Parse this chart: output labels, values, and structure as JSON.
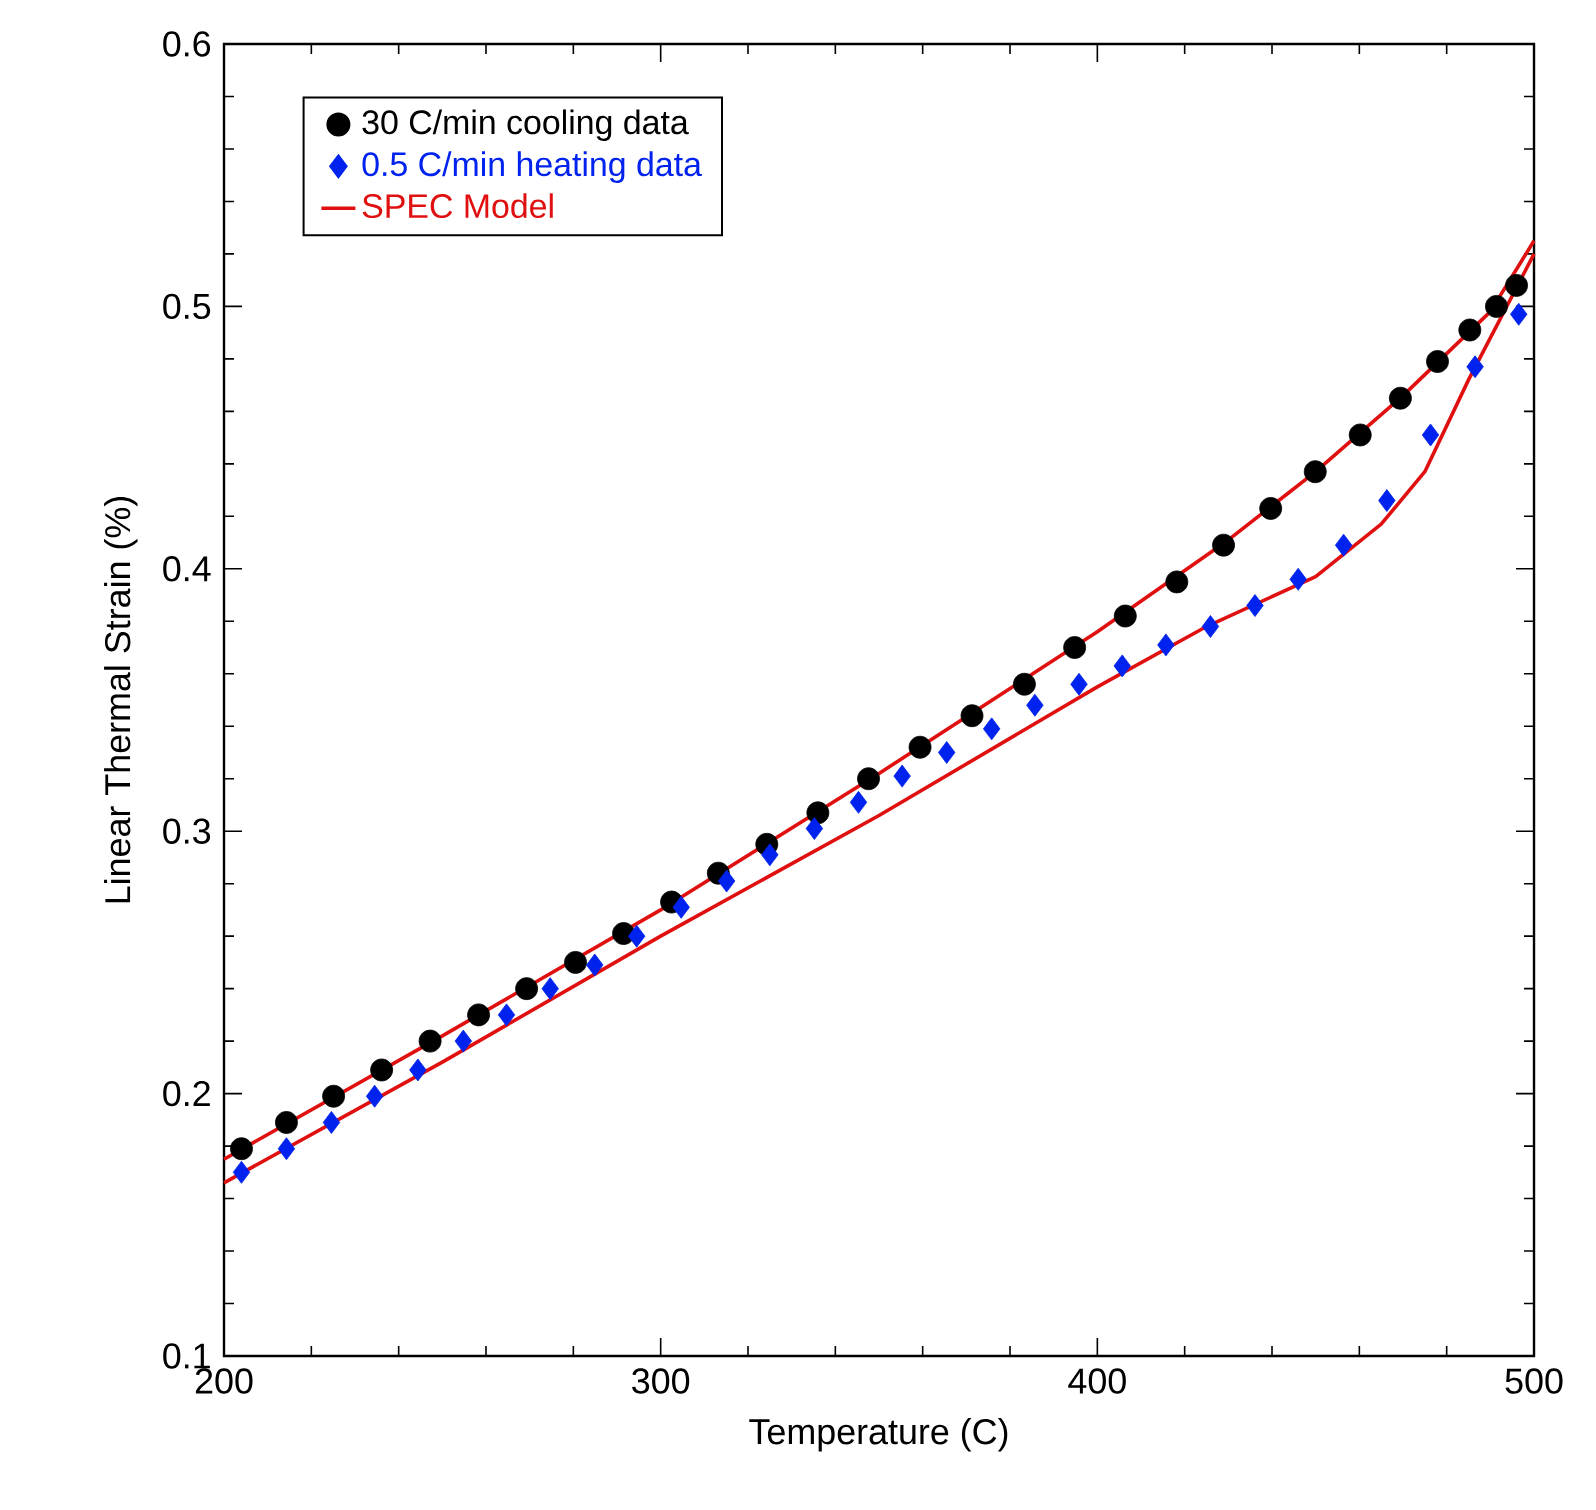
{
  "chart_data": {
    "type": "scatter",
    "xlabel": "Temperature (C)",
    "ylabel": "Linear Thermal Strain (%)",
    "xlim": [
      200,
      500
    ],
    "ylim": [
      0.1,
      0.6
    ],
    "xticks": [
      200,
      300,
      400,
      500
    ],
    "yticks": [
      0.1,
      0.2,
      0.3,
      0.4,
      0.5,
      0.6
    ],
    "grid": false,
    "legend": "top left",
    "series": [
      {
        "name": "30 C/min cooling data",
        "color": "#000000",
        "marker": "circle",
        "x": [
          204.0,
          214.3,
          225.1,
          236.1,
          247.2,
          258.3,
          269.3,
          280.5,
          291.5,
          302.5,
          313.2,
          324.3,
          336.0,
          347.6,
          359.4,
          371.3,
          383.3,
          394.8,
          406.4,
          418.2,
          428.9,
          439.7,
          449.9,
          460.2,
          469.4,
          477.9,
          485.3,
          491.4,
          496.0
        ],
        "values": [
          0.179,
          0.189,
          0.199,
          0.209,
          0.22,
          0.23,
          0.24,
          0.25,
          0.261,
          0.273,
          0.284,
          0.295,
          0.307,
          0.32,
          0.332,
          0.344,
          0.356,
          0.37,
          0.382,
          0.395,
          0.409,
          0.423,
          0.437,
          0.451,
          0.465,
          0.479,
          0.491,
          0.5,
          0.508
        ]
      },
      {
        "name": "0.5 C/min heating data",
        "color": "#0022ee",
        "marker": "diamond",
        "x": [
          204.0,
          214.3,
          224.6,
          234.5,
          244.4,
          254.8,
          264.7,
          274.7,
          284.9,
          294.5,
          304.7,
          315.1,
          325.0,
          335.2,
          345.3,
          355.3,
          365.5,
          375.8,
          385.7,
          395.8,
          405.7,
          415.7,
          425.9,
          436.1,
          446.0,
          456.4,
          466.3,
          476.3,
          486.5,
          496.5
        ],
        "values": [
          0.17,
          0.179,
          0.189,
          0.199,
          0.209,
          0.22,
          0.23,
          0.24,
          0.249,
          0.26,
          0.271,
          0.281,
          0.291,
          0.301,
          0.311,
          0.321,
          0.33,
          0.339,
          0.348,
          0.356,
          0.363,
          0.371,
          0.378,
          0.386,
          0.396,
          0.409,
          0.426,
          0.451,
          0.477,
          0.497
        ]
      },
      {
        "name": "SPEC Model",
        "color": "#e01010",
        "type": "line",
        "marker": "none",
        "x": [
          200,
          250,
          300,
          350,
          400,
          430,
          450,
          470,
          490,
          500
        ],
        "values": [
          0.175,
          0.222,
          0.27,
          0.322,
          0.376,
          0.411,
          0.437,
          0.466,
          0.498,
          0.525
        ]
      },
      {
        "color": "#e01010",
        "type": "line",
        "marker": "none",
        "x": [
          200,
          250,
          300,
          350,
          400,
          425,
          450,
          465,
          475,
          485,
          500
        ],
        "values": [
          0.166,
          0.212,
          0.26,
          0.306,
          0.355,
          0.378,
          0.397,
          0.417,
          0.437,
          0.472,
          0.52
        ]
      }
    ]
  }
}
